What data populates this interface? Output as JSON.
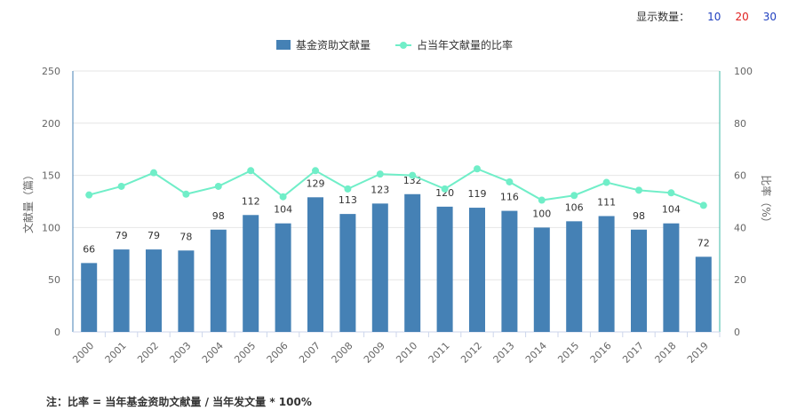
{
  "controls": {
    "display_label": "显示数量：",
    "options": [
      {
        "label": "10",
        "color": "#1f3fbf"
      },
      {
        "label": "20",
        "color": "#e0201f"
      },
      {
        "label": "30",
        "color": "#1f3fbf"
      }
    ]
  },
  "colors": {
    "bar": "#4581b5",
    "line": "#70eec8",
    "axis_left": "#4581b5",
    "axis_right": "#3bb8a4",
    "grid": "#e6e6e6"
  },
  "chart_data": {
    "type": "bar+line",
    "categories": [
      "2000",
      "2001",
      "2002",
      "2003",
      "2004",
      "2005",
      "2006",
      "2007",
      "2008",
      "2009",
      "2010",
      "2011",
      "2012",
      "2013",
      "2014",
      "2015",
      "2016",
      "2017",
      "2018",
      "2019"
    ],
    "series": [
      {
        "name": "基金资助文献量",
        "type": "bar",
        "axis": "left",
        "values": [
          66,
          79,
          79,
          78,
          98,
          112,
          104,
          129,
          113,
          123,
          132,
          120,
          119,
          116,
          100,
          106,
          111,
          98,
          104,
          72
        ]
      },
      {
        "name": "占当年文献量的比率",
        "type": "line",
        "axis": "right",
        "values": [
          52.5,
          55.8,
          61,
          52.8,
          55.8,
          61.8,
          51.8,
          61.8,
          54.8,
          60.5,
          60,
          54.8,
          62.5,
          57.5,
          50.5,
          52.3,
          57.3,
          54.3,
          53.3,
          48.5
        ]
      }
    ],
    "yleft": {
      "label": "文献量（篇）",
      "min": 0,
      "max": 250,
      "ticks": [
        "0",
        "50",
        "100",
        "150",
        "200",
        "250"
      ]
    },
    "yright": {
      "label": "比率（%）",
      "min": 0,
      "max": 100,
      "ticks": [
        "0",
        "20",
        "40",
        "60",
        "80",
        "100"
      ]
    },
    "legend_position": "top-center"
  },
  "note": "注：比率 = 当年基金资助文献量 / 当年发文量 * 100%"
}
